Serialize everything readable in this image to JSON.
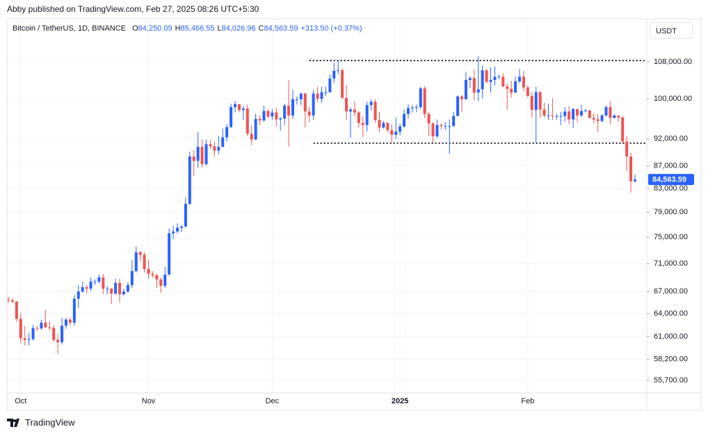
{
  "header": {
    "publisher": "Abby published on TradingView.com, Feb 27, 2025 08:26 UTC+5:30"
  },
  "footer": {
    "brand": "TradingView"
  },
  "chart_data": {
    "type": "candlestick",
    "symbol": "Bitcoin / TetherUS, 1D, BINANCE",
    "ohlc_legend": [
      {
        "label": "O",
        "value": "84,250.09"
      },
      {
        "label": "H",
        "value": "85,466.55"
      },
      {
        "label": "L",
        "value": "84,026.96"
      },
      {
        "label": "C",
        "value": "84,563.59"
      },
      {
        "label": "",
        "value": "+313.50 (+0.37%)"
      }
    ],
    "currency": "USDT",
    "last_price_label": "84,563.59",
    "up_color": "#2962ff",
    "down_color": "#ef5350",
    "log_scale": true,
    "grid": true,
    "categories": [
      null,
      null,
      null,
      "Oct",
      null,
      null,
      null,
      null,
      null,
      null,
      null,
      null,
      null,
      null,
      null,
      null,
      null,
      null,
      null,
      null,
      null,
      null,
      null,
      null,
      null,
      null,
      null,
      null,
      null,
      null,
      null,
      null,
      null,
      null,
      "Nov",
      null,
      null,
      null,
      null,
      null,
      null,
      null,
      null,
      null,
      null,
      null,
      null,
      null,
      null,
      null,
      null,
      null,
      null,
      null,
      null,
      null,
      null,
      null,
      null,
      null,
      null,
      null,
      null,
      null,
      "Dec",
      null,
      null,
      null,
      null,
      null,
      null,
      null,
      null,
      null,
      null,
      null,
      null,
      null,
      null,
      null,
      null,
      null,
      null,
      null,
      null,
      null,
      null,
      null,
      null,
      null,
      null,
      null,
      null,
      null,
      null,
      "2025",
      null,
      null,
      null,
      null,
      null,
      null,
      null,
      null,
      null,
      null,
      null,
      null,
      null,
      null,
      null,
      null,
      null,
      null,
      null,
      null,
      null,
      null,
      null,
      null,
      null,
      null,
      null,
      null,
      null,
      null,
      "Feb",
      null,
      null,
      null,
      null,
      null,
      null,
      null,
      null,
      null,
      null,
      null,
      null,
      null,
      null,
      null,
      null,
      null,
      null,
      null,
      null,
      null,
      null,
      null,
      null,
      null,
      null
    ],
    "open": [
      65900,
      65800,
      65600,
      63300,
      60800,
      60600,
      60700,
      62100,
      62050,
      62800,
      62200,
      62100,
      60600,
      60300,
      62400,
      63200,
      62800,
      66000,
      67000,
      67600,
      67400,
      68400,
      68400,
      69000,
      67400,
      67400,
      66700,
      68200,
      66600,
      67000,
      67900,
      69900,
      72700,
      72300,
      70200,
      69500,
      69300,
      68700,
      67800,
      69400,
      75600,
      75900,
      76500,
      76700,
      80400,
      88700,
      87900,
      90500,
      87300,
      91000,
      90600,
      89800,
      90500,
      92300,
      94300,
      98300,
      98900,
      97700,
      98000,
      93000,
      91900,
      95900,
      95600,
      97500,
      96400,
      97200,
      95800,
      96000,
      98600,
      96600,
      99900,
      99900,
      101100,
      97400,
      96600,
      101100,
      100000,
      101400,
      101400,
      104300,
      106000,
      106100,
      100200,
      97400,
      97800,
      97200,
      95100,
      94700,
      98700,
      99400,
      95700,
      94200,
      95100,
      93700,
      92800,
      93400,
      94400,
      96900,
      98100,
      98200,
      98300,
      102200,
      96900,
      95000,
      92500,
      94700,
      94500,
      94500,
      94500,
      96500,
      100500,
      99900,
      104000,
      104400,
      101300,
      102000,
      106100,
      103600,
      104000,
      104700,
      104700,
      102600,
      102100,
      101300,
      103700,
      104700,
      102400,
      100600,
      97700,
      101400,
      97800,
      96600,
      96600,
      96500,
      96500,
      96500,
      97400,
      95800,
      97900,
      96600,
      97500,
      97600,
      96100,
      95800,
      95500,
      96600,
      98300,
      96100,
      96600,
      96200,
      91500,
      88700,
      84250.09
    ],
    "high": [
      66300,
      66100,
      65700,
      64100,
      62400,
      61500,
      62500,
      62400,
      63200,
      64500,
      63000,
      62500,
      61300,
      63400,
      63400,
      63500,
      66500,
      67900,
      68400,
      67900,
      69000,
      68700,
      69400,
      69500,
      67800,
      67500,
      68800,
      68800,
      67400,
      68300,
      71500,
      73600,
      72900,
      72700,
      71600,
      69900,
      69500,
      69000,
      70500,
      76400,
      76800,
      77200,
      76900,
      81500,
      89600,
      89900,
      93300,
      91800,
      91900,
      91800,
      91500,
      92600,
      94000,
      94900,
      99000,
      99600,
      98700,
      98600,
      98800,
      94600,
      97000,
      96600,
      98600,
      97800,
      97900,
      98100,
      96300,
      99000,
      103900,
      101900,
      100500,
      101300,
      101300,
      98300,
      101900,
      102500,
      102500,
      102600,
      105200,
      107800,
      108300,
      106500,
      102800,
      98200,
      99500,
      97500,
      96400,
      99400,
      99900,
      99900,
      97300,
      95500,
      95300,
      94900,
      96200,
      95000,
      97800,
      98900,
      98700,
      98800,
      102500,
      102700,
      97300,
      95300,
      95800,
      95000,
      95300,
      95800,
      97300,
      100700,
      100800,
      105800,
      104900,
      106300,
      109300,
      107200,
      106400,
      106800,
      107000,
      105200,
      105400,
      103200,
      103800,
      104800,
      106400,
      106000,
      102800,
      101400,
      102500,
      101700,
      99200,
      99000,
      100100,
      96900,
      97300,
      98300,
      98500,
      98100,
      97900,
      98800,
      97900,
      97700,
      97000,
      96900,
      96900,
      98700,
      99500,
      96900,
      96500,
      96500,
      92500,
      89400,
      85466.55
    ],
    "low": [
      65400,
      65400,
      62900,
      60200,
      59900,
      59900,
      60500,
      61700,
      61900,
      62100,
      61800,
      60300,
      58900,
      60000,
      62000,
      62400,
      62400,
      64800,
      66800,
      66700,
      67100,
      67900,
      68100,
      66600,
      66600,
      65300,
      66600,
      65500,
      66500,
      66800,
      67500,
      69700,
      71400,
      69700,
      68800,
      69000,
      67500,
      66800,
      67500,
      69300,
      74700,
      75600,
      75800,
      76500,
      80200,
      85200,
      86600,
      86700,
      87000,
      90100,
      88700,
      89100,
      90400,
      91500,
      94100,
      97200,
      97200,
      95700,
      92600,
      90800,
      91800,
      94700,
      95400,
      96000,
      95700,
      94400,
      93600,
      94700,
      90500,
      95900,
      98800,
      98700,
      94200,
      95300,
      95700,
      99300,
      99200,
      100600,
      101200,
      103300,
      105300,
      100000,
      95700,
      92200,
      96400,
      94200,
      92400,
      93400,
      97600,
      95200,
      93300,
      94000,
      93300,
      91300,
      92000,
      92700,
      94200,
      96000,
      97200,
      97300,
      97900,
      96100,
      92500,
      91200,
      92200,
      93800,
      93700,
      89200,
      94300,
      96500,
      97300,
      99900,
      102300,
      99700,
      99500,
      100100,
      103300,
      101300,
      102800,
      104200,
      102500,
      97800,
      100300,
      101300,
      103300,
      101600,
      100300,
      96200,
      91200,
      96200,
      96200,
      95700,
      95700,
      95700,
      94700,
      95300,
      94900,
      94100,
      95300,
      96300,
      97200,
      96000,
      95100,
      93300,
      95200,
      96400,
      94800,
      96000,
      95300,
      91200,
      86100,
      82300,
      84026.96
    ],
    "close": [
      65800,
      65600,
      63300,
      60800,
      60600,
      60700,
      62100,
      62050,
      62800,
      62200,
      62100,
      60600,
      60300,
      62400,
      63200,
      62800,
      66000,
      67000,
      67600,
      67400,
      68400,
      68400,
      69000,
      67400,
      67400,
      66700,
      68200,
      66600,
      67000,
      67900,
      69900,
      72700,
      72300,
      70200,
      69500,
      69300,
      68700,
      67800,
      69400,
      75600,
      75900,
      76500,
      76700,
      80400,
      88700,
      87900,
      90500,
      87300,
      91000,
      90600,
      89800,
      90500,
      92300,
      94300,
      98300,
      98900,
      97700,
      98000,
      93000,
      91900,
      95900,
      95600,
      97500,
      96400,
      97200,
      95800,
      96000,
      98600,
      96600,
      99900,
      99900,
      101100,
      97400,
      96600,
      101100,
      100000,
      101400,
      101400,
      104300,
      106000,
      106100,
      100200,
      97400,
      97800,
      97200,
      95100,
      94700,
      98700,
      99400,
      95700,
      94200,
      95100,
      93700,
      92800,
      93400,
      94400,
      96900,
      98100,
      98200,
      98300,
      102200,
      96900,
      95000,
      92500,
      94700,
      94500,
      94500,
      94500,
      96500,
      100500,
      99900,
      104000,
      104400,
      101300,
      102000,
      106100,
      103600,
      104000,
      104700,
      104700,
      102600,
      102100,
      101300,
      103700,
      104700,
      102400,
      100600,
      97700,
      101400,
      97800,
      96600,
      96600,
      96500,
      96500,
      96500,
      97400,
      95800,
      97900,
      96600,
      97500,
      97600,
      96100,
      95800,
      95500,
      96600,
      98300,
      96100,
      96600,
      96200,
      91500,
      88700,
      84250.09,
      84563.59
    ],
    "hlines": [
      {
        "value": 108300,
        "start": 73
      },
      {
        "value": 91200,
        "start": 74
      }
    ],
    "ylim": [
      54270,
      118100
    ],
    "yticks": [
      {
        "value": 108000,
        "label": "108,000.00"
      },
      {
        "value": 100000,
        "label": "100,000.00"
      },
      {
        "value": 92000,
        "label": "92,000.00"
      },
      {
        "value": 87000,
        "label": "87,000.00"
      },
      {
        "value": 83000,
        "label": "83,000.00"
      },
      {
        "value": 79000,
        "label": "79,000.00"
      },
      {
        "value": 75000,
        "label": "75,000.00"
      },
      {
        "value": 71000,
        "label": "71,000.00"
      },
      {
        "value": 67000,
        "label": "67,000.00"
      },
      {
        "value": 64000,
        "label": "64,000.00"
      },
      {
        "value": 61000,
        "label": "61,000.00"
      },
      {
        "value": 58200,
        "label": "58,200.00"
      },
      {
        "value": 55700,
        "label": "55,700.00"
      }
    ]
  }
}
